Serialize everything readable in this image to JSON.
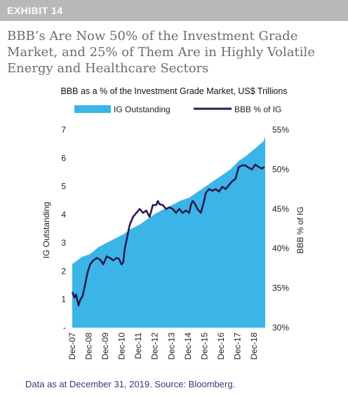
{
  "header": {
    "exhibit_label": "EXHIBIT 14",
    "headline": "BBB’s Are Now 50% of the Investment Grade Market, and 25% of Them Are in Highly Volatile Energy and Healthcare Sectors"
  },
  "footnote": "Data as at December 31, 2019. Source: Bloomberg.",
  "colors": {
    "area": "#3bb5e8",
    "line": "#2b1a4c",
    "footnote": "#4b2d7f",
    "header_bar": "#b9b9b9"
  },
  "chart_data": {
    "type": "area",
    "title": "BBB as a % of the Investment Grade Market, US$ Trillions",
    "legend_placement": "top",
    "grid": false,
    "x_tick_labels": [
      "Dec-07",
      "Dec-08",
      "Dec-09",
      "Dec-10",
      "Dec-11",
      "Dec-12",
      "Dec-13",
      "Dec-14",
      "Dec-15",
      "Dec-16",
      "Dec-17",
      "Dec-18"
    ],
    "x_range": [
      2007.92,
      2019.6
    ],
    "y_left": {
      "label": "IG Outstanding",
      "range": [
        0,
        7
      ],
      "tick_labels": [
        "-",
        "1",
        "2",
        "3",
        "4",
        "5",
        "6",
        "7"
      ]
    },
    "y_right": {
      "label": "BBB % of IG",
      "range": [
        30,
        55
      ],
      "tick_labels": [
        "30%",
        "35%",
        "40%",
        "45%",
        "50%",
        "55%"
      ]
    },
    "series": [
      {
        "name": "IG Outstanding",
        "type": "area",
        "axis": "left",
        "x": [
          2007.92,
          2008.5,
          2009.0,
          2009.5,
          2010.0,
          2010.5,
          2011.0,
          2011.5,
          2012.0,
          2012.5,
          2013.0,
          2013.5,
          2014.0,
          2014.5,
          2015.0,
          2015.5,
          2016.0,
          2016.5,
          2017.0,
          2017.5,
          2018.0,
          2018.5,
          2019.0,
          2019.5,
          2019.6
        ],
        "y": [
          2.25,
          2.5,
          2.6,
          2.85,
          3.0,
          3.15,
          3.3,
          3.5,
          3.65,
          3.85,
          4.05,
          4.2,
          4.35,
          4.5,
          4.6,
          4.8,
          5.0,
          5.2,
          5.4,
          5.6,
          5.9,
          6.1,
          6.35,
          6.6,
          6.75
        ]
      },
      {
        "name": "BBB % of IG",
        "type": "line",
        "axis": "right",
        "x": [
          2007.92,
          2008.05,
          2008.15,
          2008.3,
          2008.4,
          2008.55,
          2008.7,
          2008.85,
          2009.0,
          2009.2,
          2009.4,
          2009.6,
          2009.8,
          2010.0,
          2010.2,
          2010.4,
          2010.6,
          2010.75,
          2010.9,
          2011.0,
          2011.1,
          2011.25,
          2011.4,
          2011.6,
          2011.8,
          2012.0,
          2012.2,
          2012.4,
          2012.6,
          2012.8,
          2013.0,
          2013.1,
          2013.2,
          2013.4,
          2013.6,
          2013.8,
          2014.0,
          2014.2,
          2014.4,
          2014.6,
          2014.8,
          2015.0,
          2015.1,
          2015.2,
          2015.3,
          2015.5,
          2015.7,
          2015.9,
          2016.0,
          2016.2,
          2016.4,
          2016.6,
          2016.8,
          2017.0,
          2017.2,
          2017.4,
          2017.6,
          2017.8,
          2018.0,
          2018.2,
          2018.4,
          2018.6,
          2018.8,
          2019.0,
          2019.2,
          2019.4,
          2019.55
        ],
        "y": [
          34.5,
          33.8,
          34.2,
          32.8,
          33.5,
          34.0,
          35.5,
          37.0,
          38.0,
          38.5,
          38.8,
          38.6,
          38.0,
          39.0,
          38.8,
          38.5,
          38.8,
          38.7,
          38.0,
          38.2,
          40.0,
          41.5,
          43.0,
          44.0,
          44.5,
          45.0,
          44.5,
          44.8,
          44.0,
          45.5,
          45.5,
          46.0,
          45.6,
          45.5,
          45.0,
          45.2,
          45.0,
          44.5,
          45.0,
          44.5,
          44.8,
          44.5,
          45.5,
          46.0,
          45.8,
          45.0,
          44.5,
          46.0,
          47.0,
          47.5,
          47.3,
          47.5,
          47.2,
          47.8,
          47.5,
          48.0,
          48.5,
          48.8,
          50.3,
          50.5,
          50.5,
          50.2,
          50.0,
          50.6,
          50.3,
          50.1,
          50.3
        ]
      }
    ]
  }
}
